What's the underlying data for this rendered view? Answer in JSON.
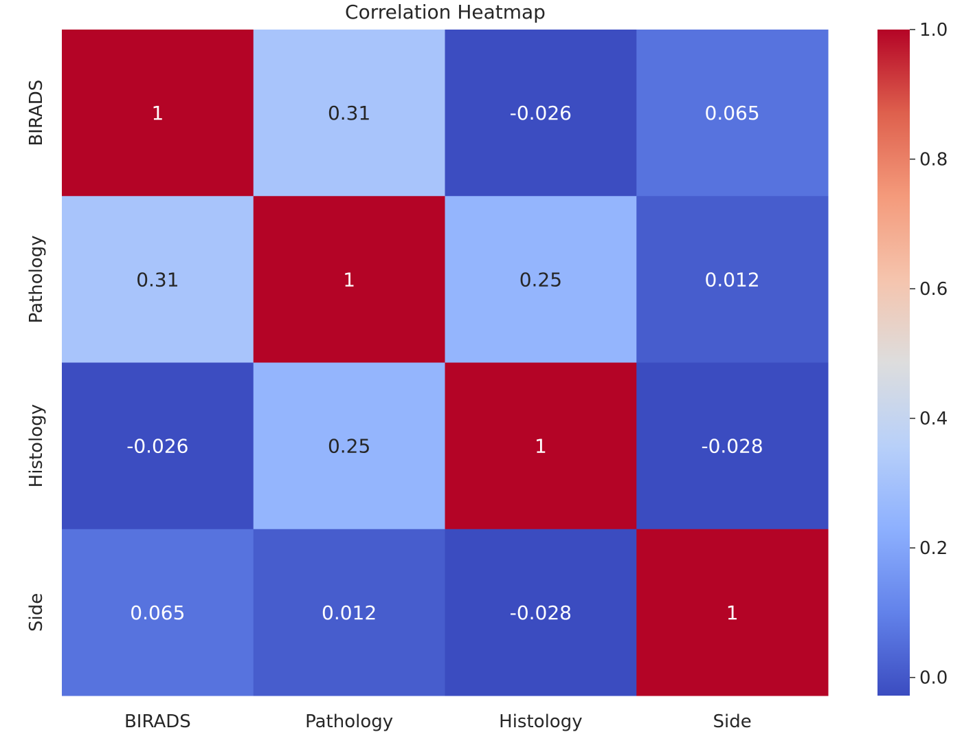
{
  "chart_data": {
    "type": "heatmap",
    "title": "Correlation Heatmap",
    "x_labels": [
      "BIRADS",
      "Pathology",
      "Histology",
      "Side"
    ],
    "y_labels": [
      "BIRADS",
      "Pathology",
      "Histology",
      "Side"
    ],
    "values": [
      [
        1,
        0.31,
        -0.026,
        0.065
      ],
      [
        0.31,
        1,
        0.25,
        0.012
      ],
      [
        -0.026,
        0.25,
        1,
        -0.028
      ],
      [
        0.065,
        0.012,
        -0.028,
        1
      ]
    ],
    "cell_labels": [
      [
        "1",
        "0.31",
        "-0.026",
        "0.065"
      ],
      [
        "0.31",
        "1",
        "0.25",
        "0.012"
      ],
      [
        "-0.026",
        "0.25",
        "1",
        "-0.028"
      ],
      [
        "0.065",
        "0.012",
        "-0.028",
        "1"
      ]
    ],
    "colormap": "coolwarm",
    "colorbar": {
      "range": [
        -0.028,
        1
      ],
      "ticks": [
        0.0,
        0.2,
        0.4,
        0.6,
        0.8,
        1.0
      ],
      "tick_labels": [
        "0.0",
        "0.2",
        "0.4",
        "0.6",
        "0.8",
        "1.0"
      ]
    },
    "grid": false
  }
}
